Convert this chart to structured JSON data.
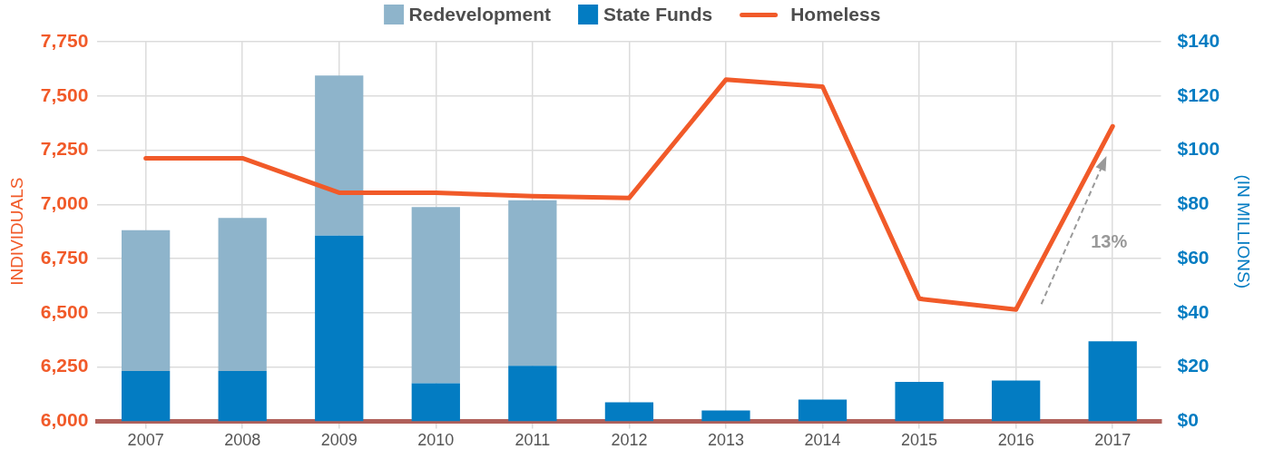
{
  "chart_data": {
    "type": "bar",
    "ylabel": "INDIVIDUALS",
    "y2label": "(IN MILLIONS)",
    "categories": [
      "2007",
      "2008",
      "2009",
      "2010",
      "2011",
      "2012",
      "2013",
      "2014",
      "2015",
      "2016",
      "2017"
    ],
    "stacked": true,
    "series": [
      {
        "name": "State Funds",
        "color": "#037cc2",
        "axis": "y2",
        "values": [
          18.5,
          18.5,
          68.5,
          14,
          20.5,
          7,
          4,
          8,
          14.5,
          15,
          29.5
        ]
      },
      {
        "name": "Redevelopment",
        "color": "#8eb4cb",
        "axis": "y2",
        "values": [
          52,
          56.5,
          59,
          65,
          61,
          null,
          null,
          null,
          null,
          null,
          null
        ]
      },
      {
        "name": "Homeless",
        "type": "line",
        "color": "#f15a29",
        "axis": "y",
        "marker": "none",
        "line_style": "solid",
        "values": [
          7213,
          7213,
          7054,
          7054,
          7038,
          7030,
          7575,
          7543,
          6565,
          6515,
          7360
        ]
      }
    ],
    "ylim": [
      6000,
      7750
    ],
    "yticks": [
      {
        "value": 6000,
        "label": "6,000"
      },
      {
        "value": 6250,
        "label": "6,250"
      },
      {
        "value": 6500,
        "label": "6,500"
      },
      {
        "value": 6750,
        "label": "6,750"
      },
      {
        "value": 7000,
        "label": "7,000"
      },
      {
        "value": 7250,
        "label": "7,250"
      },
      {
        "value": 7500,
        "label": "7,500"
      },
      {
        "value": 7750,
        "label": "7,750"
      }
    ],
    "y2lim": [
      0,
      140
    ],
    "y2ticks": [
      {
        "value": 0,
        "label": "$0"
      },
      {
        "value": 20,
        "label": "$20"
      },
      {
        "value": 40,
        "label": "$40"
      },
      {
        "value": 60,
        "label": "$60"
      },
      {
        "value": 80,
        "label": "$80"
      },
      {
        "value": 100,
        "label": "$100"
      },
      {
        "value": 120,
        "label": "$120"
      },
      {
        "value": 140,
        "label": "$140"
      }
    ],
    "annotations": [
      "13%"
    ],
    "grid": true,
    "legend": "top"
  }
}
